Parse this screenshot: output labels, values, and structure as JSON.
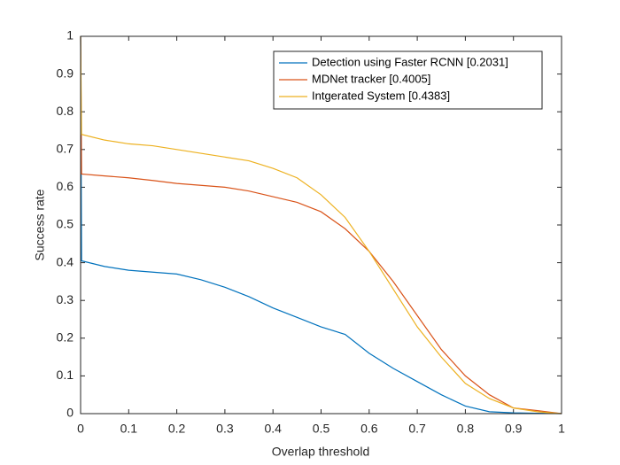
{
  "chart_data": {
    "type": "line",
    "x_label": "Overlap threshold",
    "y_label": "Success rate",
    "x": [
      0,
      0.002,
      0.05,
      0.1,
      0.15,
      0.2,
      0.25,
      0.3,
      0.35,
      0.4,
      0.45,
      0.5,
      0.55,
      0.6,
      0.65,
      0.7,
      0.75,
      0.8,
      0.85,
      0.9,
      0.95,
      1
    ],
    "series": [
      {
        "name": "Detection using Faster RCNN [0.2031]",
        "color": "#0072BD",
        "values": [
          1,
          0.405,
          0.39,
          0.38,
          0.375,
          0.37,
          0.355,
          0.335,
          0.31,
          0.28,
          0.255,
          0.23,
          0.21,
          0.16,
          0.12,
          0.085,
          0.05,
          0.02,
          0.005,
          0.002,
          0.001,
          0
        ]
      },
      {
        "name": "MDNet tracker [0.4005]",
        "color": "#D95319",
        "values": [
          1,
          0.635,
          0.63,
          0.625,
          0.618,
          0.61,
          0.605,
          0.6,
          0.59,
          0.575,
          0.56,
          0.535,
          0.49,
          0.43,
          0.35,
          0.26,
          0.17,
          0.1,
          0.05,
          0.015,
          0.008,
          0
        ]
      },
      {
        "name": "Intgerated System [0.4383]",
        "color": "#EDB120",
        "values": [
          1,
          0.74,
          0.725,
          0.715,
          0.71,
          0.7,
          0.69,
          0.68,
          0.67,
          0.65,
          0.625,
          0.58,
          0.52,
          0.43,
          0.33,
          0.23,
          0.15,
          0.08,
          0.04,
          0.015,
          0.005,
          0
        ]
      }
    ],
    "xlim": [
      0,
      1
    ],
    "ylim": [
      0,
      1
    ],
    "xticks": [
      0,
      0.1,
      0.2,
      0.3,
      0.4,
      0.5,
      0.6,
      0.7,
      0.8,
      0.9,
      1
    ],
    "yticks": [
      0,
      0.1,
      0.2,
      0.3,
      0.4,
      0.5,
      0.6,
      0.7,
      0.8,
      0.9,
      1
    ],
    "legend_position": "northeast",
    "box": true
  }
}
